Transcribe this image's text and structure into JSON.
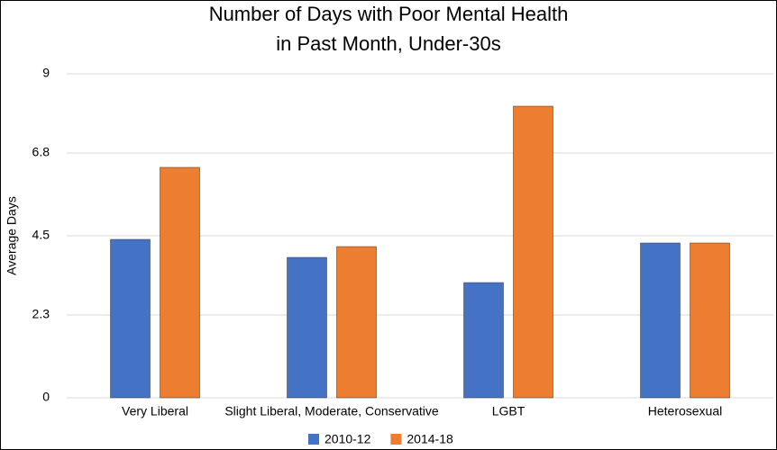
{
  "chart_data": {
    "type": "bar",
    "title": [
      "Number of Days with Poor Mental Health",
      "in Past Month, Under-30s"
    ],
    "y_label": "Average Days",
    "categories": [
      "Very Liberal",
      "Slight Liberal, Moderate, Conservative",
      "LGBT",
      "Heterosexual"
    ],
    "series": [
      {
        "name": "2010-12",
        "color": "#4472c4",
        "values": [
          4.4,
          3.9,
          3.2,
          4.3
        ]
      },
      {
        "name": "2014-18",
        "color": "#ed7d31",
        "values": [
          6.4,
          4.2,
          8.1,
          4.3
        ]
      }
    ],
    "ylim": [
      0,
      9
    ],
    "yticks": [
      0,
      2.3,
      4.5,
      6.8,
      9
    ],
    "grid": true,
    "legend": "bottom"
  }
}
